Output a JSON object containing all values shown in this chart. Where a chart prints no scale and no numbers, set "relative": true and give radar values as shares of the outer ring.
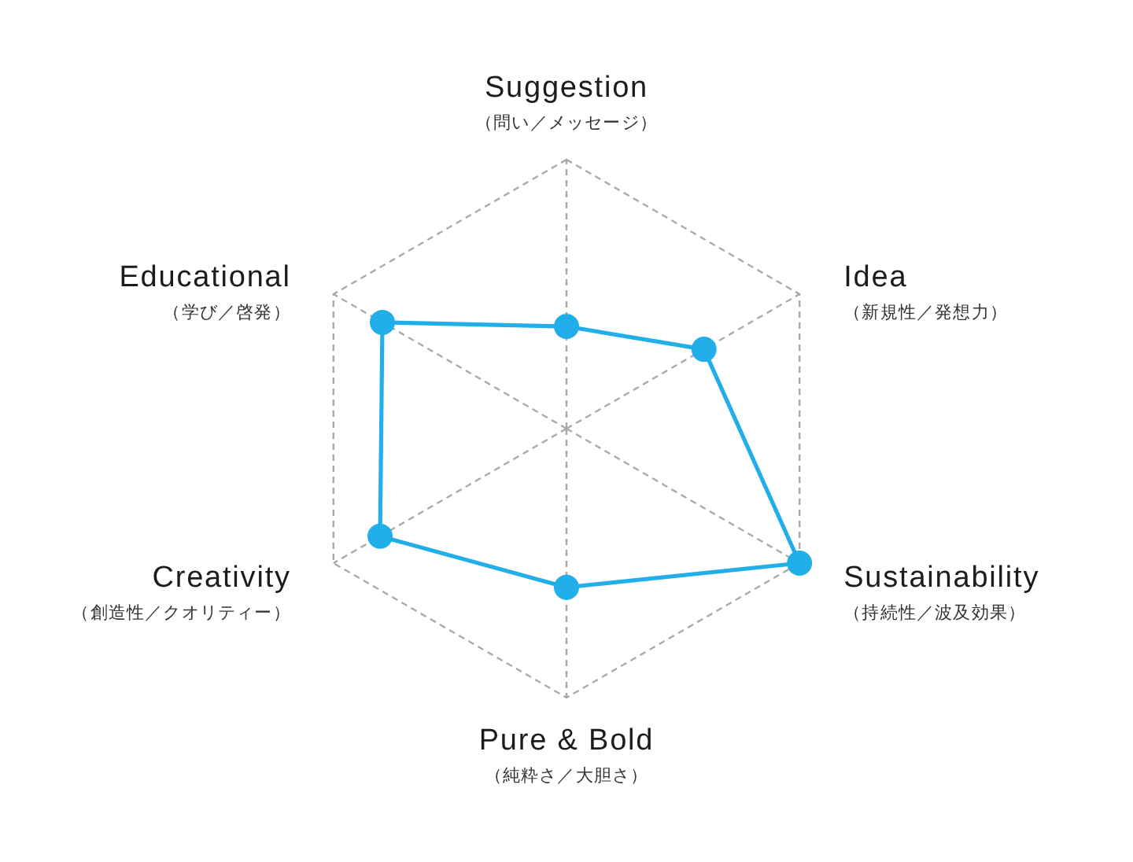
{
  "chart_data": {
    "type": "radar",
    "relative": true,
    "categories": [
      "Suggestion\n（問い／メッセージ）",
      "Idea\n（新規性／発想力）",
      "Sustainability\n（持続性／波及効果）",
      "Pure & Bold\n（純粋さ／大胆さ）",
      "Creativity\n（創造性／クオリティー）",
      "Educational\n（学び／啓発）"
    ],
    "series": [
      {
        "color": "#22aee8",
        "values": [
          0.38,
          0.59,
          1,
          0.59,
          0.8,
          0.79
        ]
      }
    ],
    "grid": true,
    "marker": "circle",
    "line_style": "solid"
  }
}
